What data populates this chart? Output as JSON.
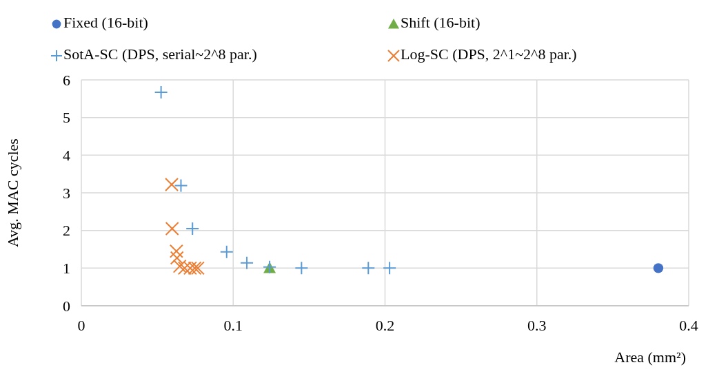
{
  "chart_data": {
    "type": "scatter",
    "xlabel": "Area (mm²)",
    "ylabel": "Avg. MAC cycles",
    "xlim": [
      0,
      0.4
    ],
    "xticks": [
      0,
      0.1,
      0.2,
      0.3,
      0.4
    ],
    "ylim": [
      0,
      6
    ],
    "yticks": [
      0,
      1,
      2,
      3,
      4,
      5,
      6
    ],
    "grid": true,
    "legend": "top",
    "series": [
      {
        "name": "Fixed (16-bit)",
        "color": "#4472c4",
        "marker": "circle",
        "x": [
          0.38
        ],
        "values": [
          1.0
        ]
      },
      {
        "name": "Shift (16-bit)",
        "color": "#70ad47",
        "marker": "triangle",
        "x": [
          0.124
        ],
        "values": [
          1.0
        ]
      },
      {
        "name": "SotA-SC (DPS, serial~2^8 par.)",
        "color": "#5b9bd5",
        "marker": "cross",
        "x": [
          0.0525,
          0.0656,
          0.0732,
          0.0957,
          0.109,
          0.124,
          0.145,
          0.189,
          0.203
        ],
        "values": [
          5.67,
          3.19,
          2.05,
          1.43,
          1.14,
          1.03,
          1.0,
          1.0,
          1.0
        ]
      },
      {
        "name": "Log-SC (DPS, 2^1~2^8 par.)",
        "color": "#ed7d31",
        "marker": "x",
        "x": [
          0.0595,
          0.0598,
          0.0626,
          0.063,
          0.0648,
          0.068,
          0.0717,
          0.0747,
          0.0767
        ],
        "values": [
          3.22,
          2.05,
          1.45,
          1.27,
          1.05,
          1.0,
          1.0,
          1.0,
          1.0
        ]
      }
    ]
  }
}
